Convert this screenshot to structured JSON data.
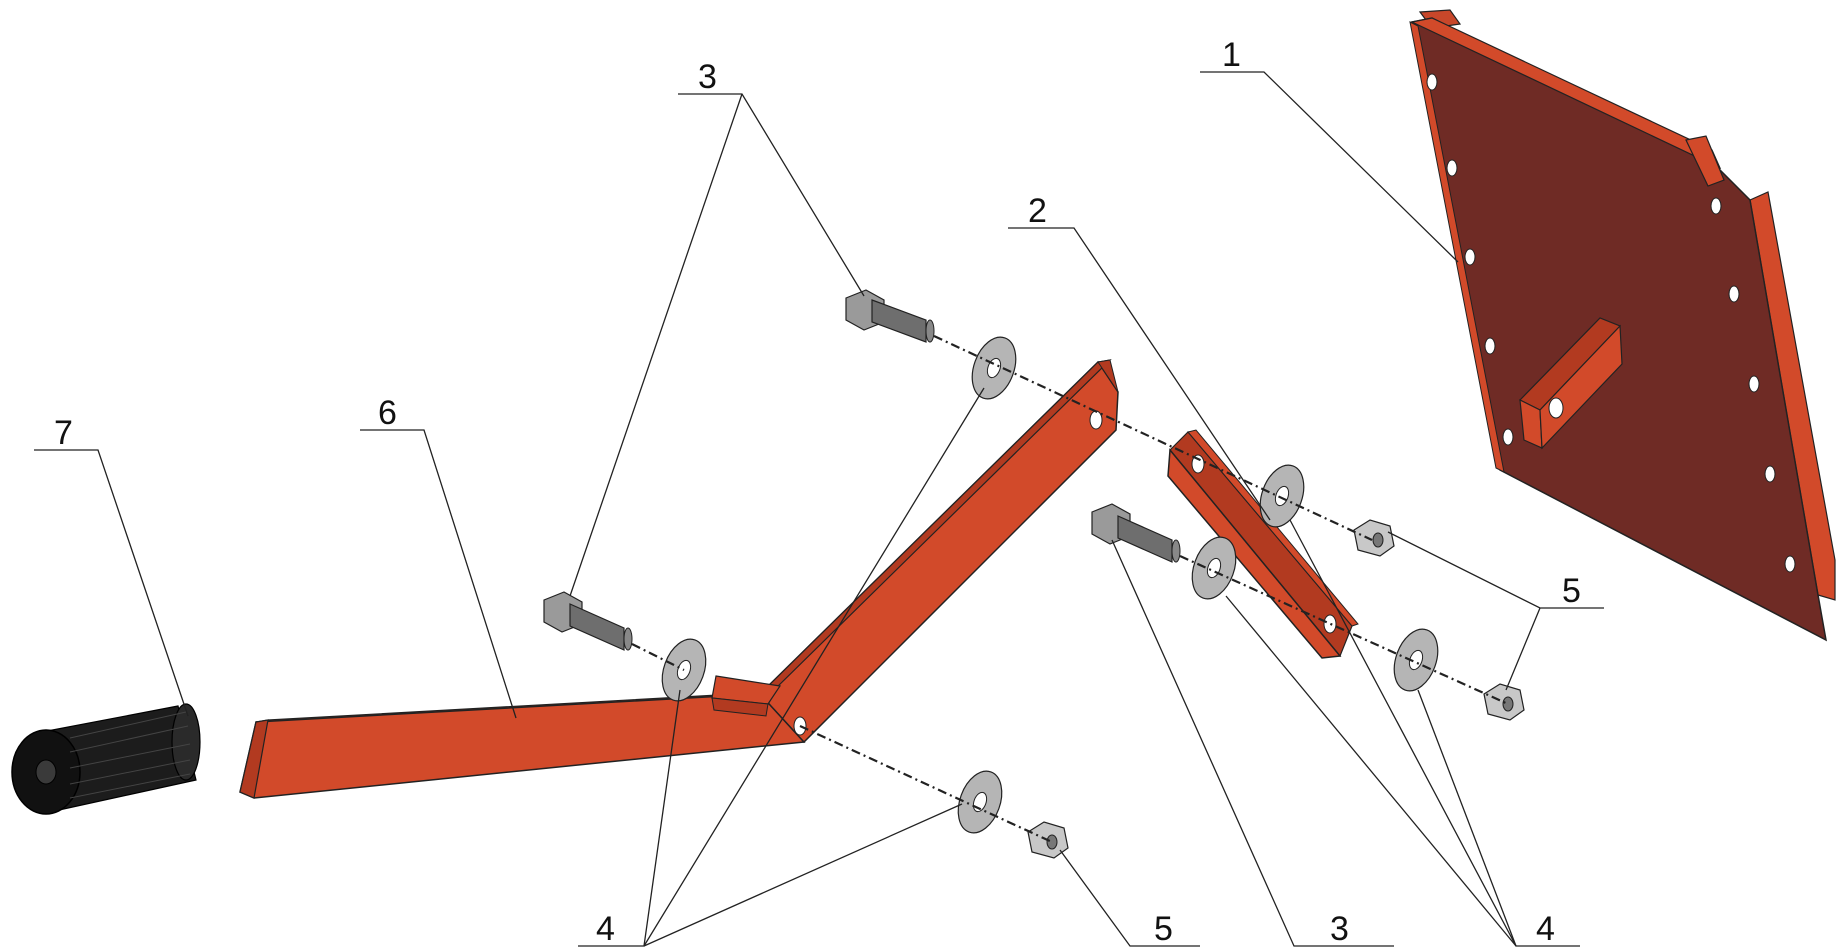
{
  "diagram": {
    "type": "exploded-assembly",
    "colors": {
      "part_orange": "#d24a2a",
      "part_orange_shade": "#b23a20",
      "plate_brown": "#6f2b25",
      "hardware_grey": "#b5b5b5",
      "hardware_dark": "#6e6e6e",
      "grip_black": "#1c1c1c"
    },
    "callouts": [
      {
        "label": "1",
        "part": "mounting-plate"
      },
      {
        "label": "2",
        "part": "link-bar"
      },
      {
        "label": "3",
        "part": "hex-bolt"
      },
      {
        "label": "3",
        "part": "hex-bolt"
      },
      {
        "label": "4",
        "part": "washer"
      },
      {
        "label": "4",
        "part": "washer"
      },
      {
        "label": "5",
        "part": "lock-nut"
      },
      {
        "label": "5",
        "part": "lock-nut"
      },
      {
        "label": "6",
        "part": "bent-arm"
      },
      {
        "label": "7",
        "part": "rubber-grip"
      }
    ]
  }
}
